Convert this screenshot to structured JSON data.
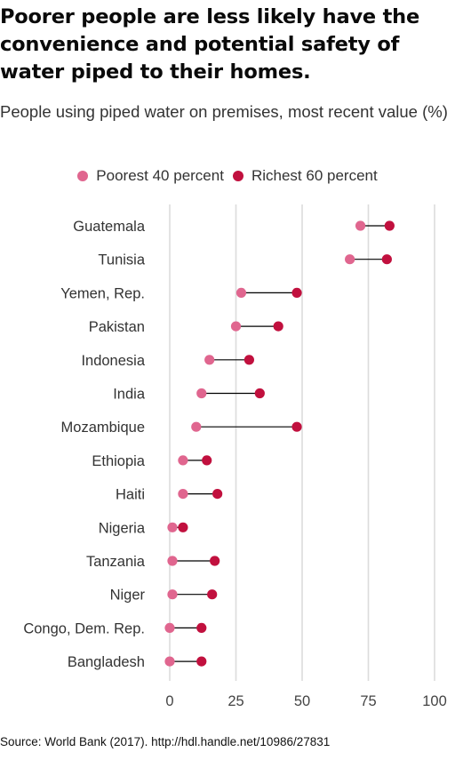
{
  "title": "Poorer people are less likely have the convenience and potential safety of water piped to their homes.",
  "subtitle": "People using piped water on premises, most recent value (%)",
  "source": "Source: World Bank (2017). http://hdl.handle.net/10986/27831",
  "colors": {
    "poorest": "#e0668f",
    "richest": "#c1103e",
    "connector": "#000000",
    "grid": "#dcdcdc"
  },
  "chart_data": {
    "type": "dot-range",
    "title": "Poorer people are less likely have the convenience and potential safety of water piped to their homes.",
    "subtitle": "People using piped water on premises, most recent value (%)",
    "xlabel": "",
    "ylabel": "",
    "xlim": [
      0,
      100
    ],
    "x_ticks": [
      0,
      25,
      50,
      75,
      100
    ],
    "grid": "vertical",
    "legend_position": "top",
    "categories": [
      "Guatemala",
      "Tunisia",
      "Yemen, Rep.",
      "Pakistan",
      "Indonesia",
      "India",
      "Mozambique",
      "Ethiopia",
      "Haiti",
      "Nigeria",
      "Tanzania",
      "Niger",
      "Congo, Dem. Rep.",
      "Bangladesh"
    ],
    "series": [
      {
        "name": "Poorest 40 percent",
        "color": "#e0668f",
        "values": [
          72,
          68,
          27,
          25,
          15,
          12,
          10,
          5,
          5,
          1,
          1,
          1,
          0,
          0
        ]
      },
      {
        "name": "Richest 60 percent",
        "color": "#c1103e",
        "values": [
          83,
          82,
          48,
          41,
          30,
          34,
          48,
          14,
          18,
          5,
          17,
          16,
          12,
          12
        ]
      }
    ]
  }
}
